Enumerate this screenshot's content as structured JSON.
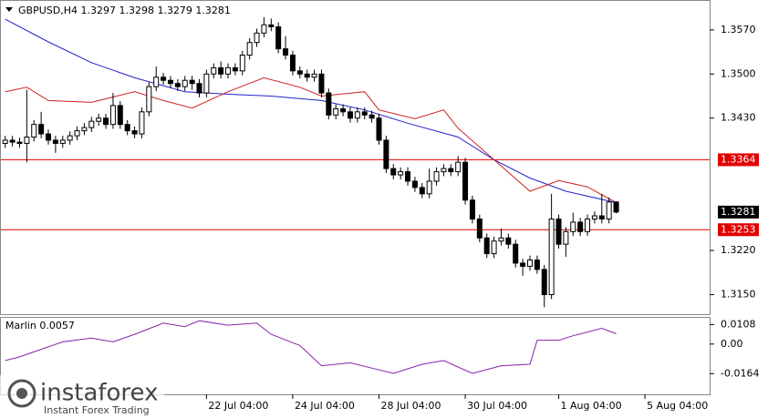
{
  "header": "GBPUSD,H4  1.3297 1.3298 1.3279 1.3281",
  "branding": {
    "name": "instaforex",
    "tagline": "Instant Forex Trading"
  },
  "chart_data": [
    {
      "type": "candlestick",
      "open": [
        1.339,
        1.3395,
        1.3392,
        1.339,
        1.34,
        1.342,
        1.3405,
        1.3395,
        1.339,
        1.3395,
        1.3402,
        1.341,
        1.3415,
        1.3425,
        1.343,
        1.342,
        1.345,
        1.342,
        1.341,
        1.3405,
        1.344,
        1.348,
        1.3495,
        1.349,
        1.3485,
        1.348,
        1.349,
        1.3485,
        1.347,
        1.35,
        1.351,
        1.35,
        1.351,
        1.3505,
        1.353,
        1.355,
        1.3565,
        1.3578,
        1.3575,
        1.354,
        1.353,
        1.3505,
        1.35,
        1.3495,
        1.35,
        1.347,
        1.3435,
        1.3445,
        1.344,
        1.343,
        1.344,
        1.3435,
        1.343,
        1.3395,
        1.335,
        1.334,
        1.3345,
        1.333,
        1.332,
        1.331,
        1.333,
        1.3345,
        1.335,
        1.3345,
        1.336,
        1.33,
        1.327,
        1.324,
        1.3215,
        1.3235,
        1.324,
        1.323,
        1.32,
        1.3195,
        1.3205,
        1.319,
        1.315,
        1.327,
        1.323,
        1.325,
        1.3265,
        1.325,
        1.327,
        1.3275,
        1.327,
        1.3297
      ],
      "high": [
        1.3402,
        1.3402,
        1.3399,
        1.3475,
        1.3427,
        1.344,
        1.3412,
        1.3402,
        1.3402,
        1.3409,
        1.3417,
        1.3422,
        1.3432,
        1.3437,
        1.3437,
        1.347,
        1.3457,
        1.3427,
        1.3417,
        1.3447,
        1.3487,
        1.3512,
        1.3502,
        1.3497,
        1.3492,
        1.3497,
        1.3497,
        1.3492,
        1.3507,
        1.3517,
        1.352,
        1.3517,
        1.3517,
        1.3537,
        1.3557,
        1.3572,
        1.359,
        1.3588,
        1.3582,
        1.356,
        1.3537,
        1.3512,
        1.3507,
        1.3507,
        1.3507,
        1.3477,
        1.3452,
        1.3452,
        1.3447,
        1.3447,
        1.3447,
        1.3442,
        1.3437,
        1.3402,
        1.3357,
        1.3352,
        1.3352,
        1.3337,
        1.3327,
        1.335,
        1.3352,
        1.3357,
        1.3357,
        1.337,
        1.3367,
        1.3307,
        1.3277,
        1.3247,
        1.3242,
        1.3255,
        1.3247,
        1.3237,
        1.3207,
        1.3212,
        1.3212,
        1.3197,
        1.331,
        1.3277,
        1.3257,
        1.328,
        1.3272,
        1.3277,
        1.3282,
        1.331,
        1.3304,
        1.3298
      ],
      "low": [
        1.3383,
        1.3385,
        1.3383,
        1.336,
        1.3393,
        1.3398,
        1.3388,
        1.3375,
        1.3383,
        1.3388,
        1.3395,
        1.3403,
        1.3408,
        1.3418,
        1.3413,
        1.3413,
        1.3413,
        1.3403,
        1.3398,
        1.3398,
        1.3433,
        1.3473,
        1.3483,
        1.3478,
        1.3473,
        1.3473,
        1.3475,
        1.3463,
        1.3463,
        1.3493,
        1.3493,
        1.3493,
        1.3498,
        1.3498,
        1.3523,
        1.3543,
        1.3558,
        1.3568,
        1.3533,
        1.3523,
        1.3498,
        1.3493,
        1.3488,
        1.3488,
        1.3463,
        1.3428,
        1.3428,
        1.3433,
        1.3423,
        1.3423,
        1.3428,
        1.3423,
        1.3388,
        1.3343,
        1.3333,
        1.3333,
        1.3323,
        1.3313,
        1.3303,
        1.3303,
        1.3323,
        1.3338,
        1.3338,
        1.3338,
        1.3293,
        1.3263,
        1.3233,
        1.3208,
        1.3208,
        1.3228,
        1.3223,
        1.3193,
        1.318,
        1.3188,
        1.3183,
        1.313,
        1.3143,
        1.3223,
        1.321,
        1.3243,
        1.3243,
        1.3243,
        1.3263,
        1.3263,
        1.3263,
        1.3279
      ],
      "close": [
        1.3395,
        1.3392,
        1.339,
        1.34,
        1.342,
        1.3405,
        1.3395,
        1.339,
        1.3395,
        1.3402,
        1.341,
        1.3415,
        1.3425,
        1.343,
        1.342,
        1.345,
        1.342,
        1.341,
        1.3405,
        1.344,
        1.348,
        1.3495,
        1.349,
        1.3485,
        1.348,
        1.349,
        1.3485,
        1.347,
        1.35,
        1.351,
        1.35,
        1.351,
        1.3505,
        1.353,
        1.355,
        1.3565,
        1.3578,
        1.3575,
        1.354,
        1.353,
        1.3505,
        1.35,
        1.3495,
        1.35,
        1.347,
        1.3435,
        1.3445,
        1.344,
        1.343,
        1.344,
        1.3435,
        1.343,
        1.3395,
        1.335,
        1.334,
        1.3345,
        1.333,
        1.332,
        1.331,
        1.333,
        1.3345,
        1.335,
        1.3345,
        1.336,
        1.33,
        1.327,
        1.324,
        1.3215,
        1.3235,
        1.324,
        1.323,
        1.32,
        1.3195,
        1.3205,
        1.319,
        1.315,
        1.327,
        1.323,
        1.325,
        1.3265,
        1.325,
        1.327,
        1.3275,
        1.327,
        1.3297,
        1.3281
      ],
      "series": [
        {
          "color": "#2222cc",
          "x": [
            0,
            6,
            12,
            18,
            25,
            31,
            37,
            44,
            50,
            56,
            63,
            68,
            73,
            78,
            85
          ],
          "values": [
            1.3587,
            1.3551,
            1.3518,
            1.3494,
            1.3472,
            1.3468,
            1.3465,
            1.3458,
            1.3443,
            1.3422,
            1.34,
            1.3364,
            1.3335,
            1.3314,
            1.3296
          ]
        },
        {
          "color": "#cc2222",
          "x": [
            0,
            3,
            6,
            12,
            18,
            22,
            26,
            31,
            36,
            41,
            44,
            50,
            52,
            57,
            61,
            63,
            68,
            73,
            77,
            81,
            85
          ],
          "values": [
            1.3472,
            1.3479,
            1.3458,
            1.3455,
            1.3472,
            1.3458,
            1.3446,
            1.3472,
            1.3494,
            1.3479,
            1.3465,
            1.3472,
            1.3443,
            1.3429,
            1.3443,
            1.3414,
            1.3364,
            1.3314,
            1.3331,
            1.3321,
            1.3296
          ]
        }
      ],
      "levels": [
        {
          "value": 1.3364,
          "label": "1.3364",
          "color": "#e00000"
        },
        {
          "value": 1.3253,
          "label": "1.3253",
          "color": "#e00000"
        }
      ],
      "last_price": {
        "value": 1.3281,
        "label": "1.3281"
      },
      "xlim": [
        -0.6,
        98
      ],
      "xticks": [
        {
          "value": 28,
          "label": "22 Jul 04:00"
        },
        {
          "value": 40,
          "label": "24 Jul 04:00"
        },
        {
          "value": 52,
          "label": "28 Jul 04:00"
        },
        {
          "value": 64,
          "label": "30 Jul 04:00"
        },
        {
          "value": 77,
          "label": "1 Aug 04:00"
        },
        {
          "value": 89,
          "label": "5 Aug 04:00"
        }
      ],
      "ylim": [
        1.3119,
        1.3616
      ],
      "yticks": [
        {
          "value": 1.357,
          "label": "1.3570"
        },
        {
          "value": 1.35,
          "label": "1.3500"
        },
        {
          "value": 1.343,
          "label": "1.3430"
        },
        {
          "value": 1.322,
          "label": "1.3220"
        },
        {
          "value": 1.315,
          "label": "1.3150"
        }
      ]
    },
    {
      "type": "line",
      "title": "Marlin 0.0057",
      "series": [
        {
          "color": "#8822aa",
          "x": [
            0,
            2,
            5,
            8,
            12,
            15,
            18,
            22,
            25,
            27,
            31,
            35,
            37,
            41,
            44,
            48,
            51,
            54,
            58,
            61,
            65,
            69,
            73,
            74,
            77,
            79,
            83,
            85
          ],
          "values": [
            -0.0091,
            -0.0071,
            -0.0029,
            0.0012,
            0.0033,
            0.0012,
            0.0054,
            0.0116,
            0.0096,
            0.0129,
            0.0104,
            0.0116,
            0.0054,
            -0.0008,
            -0.012,
            -0.0104,
            -0.0133,
            -0.0162,
            -0.0112,
            -0.0091,
            -0.0162,
            -0.012,
            -0.0112,
            0.0021,
            0.0021,
            0.0046,
            0.0087,
            0.0057
          ]
        }
      ],
      "ylim": [
        -0.0278,
        0.0145
      ],
      "yticks": [
        {
          "value": 0.0108,
          "label": "0.0108"
        },
        {
          "value": 0,
          "label": "0.00"
        },
        {
          "value": -0.0164,
          "label": "-0.0164"
        }
      ]
    }
  ]
}
